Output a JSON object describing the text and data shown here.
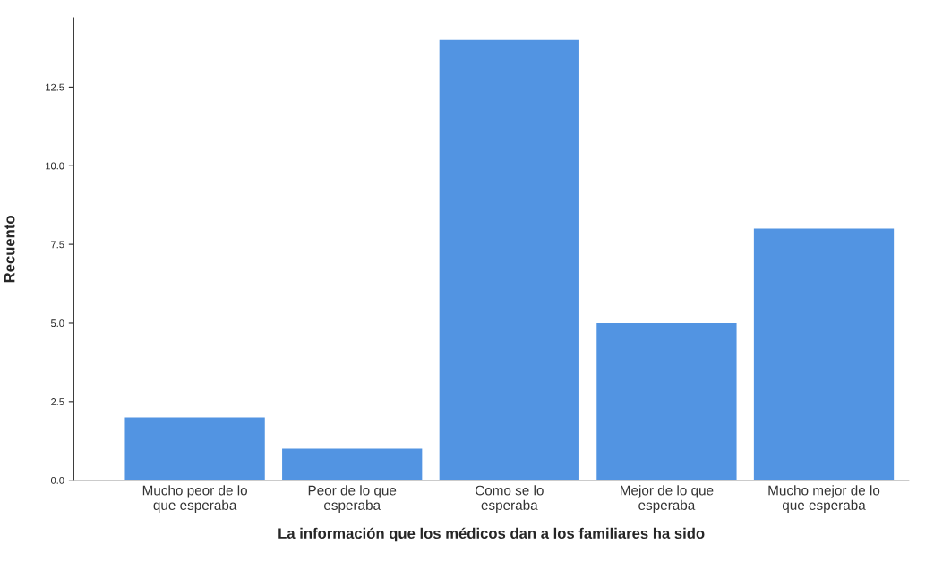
{
  "chart_data": {
    "type": "bar",
    "xlabel": "La información que los médicos dan a los familiares ha sido",
    "ylabel": "Recuento",
    "categories": [
      "Mucho peor de lo\nque esperaba",
      "Peor de lo que\nesperaba",
      "Como se lo\nesperaba",
      "Mejor de lo que\nesperaba",
      "Mucho mejor de lo\nque esperaba"
    ],
    "values": [
      2,
      1,
      14,
      5,
      8
    ],
    "color": "#5294e2",
    "ylim": [
      0,
      14.7
    ],
    "yticks": [
      {
        "value": 0,
        "label": "0.0"
      },
      {
        "value": 2.5,
        "label": "2.5"
      },
      {
        "value": 5,
        "label": "5.0"
      },
      {
        "value": 7.5,
        "label": "7.5"
      },
      {
        "value": 10,
        "label": "10.0"
      },
      {
        "value": 12.5,
        "label": "12.5"
      }
    ],
    "grid": false,
    "legend": false
  }
}
